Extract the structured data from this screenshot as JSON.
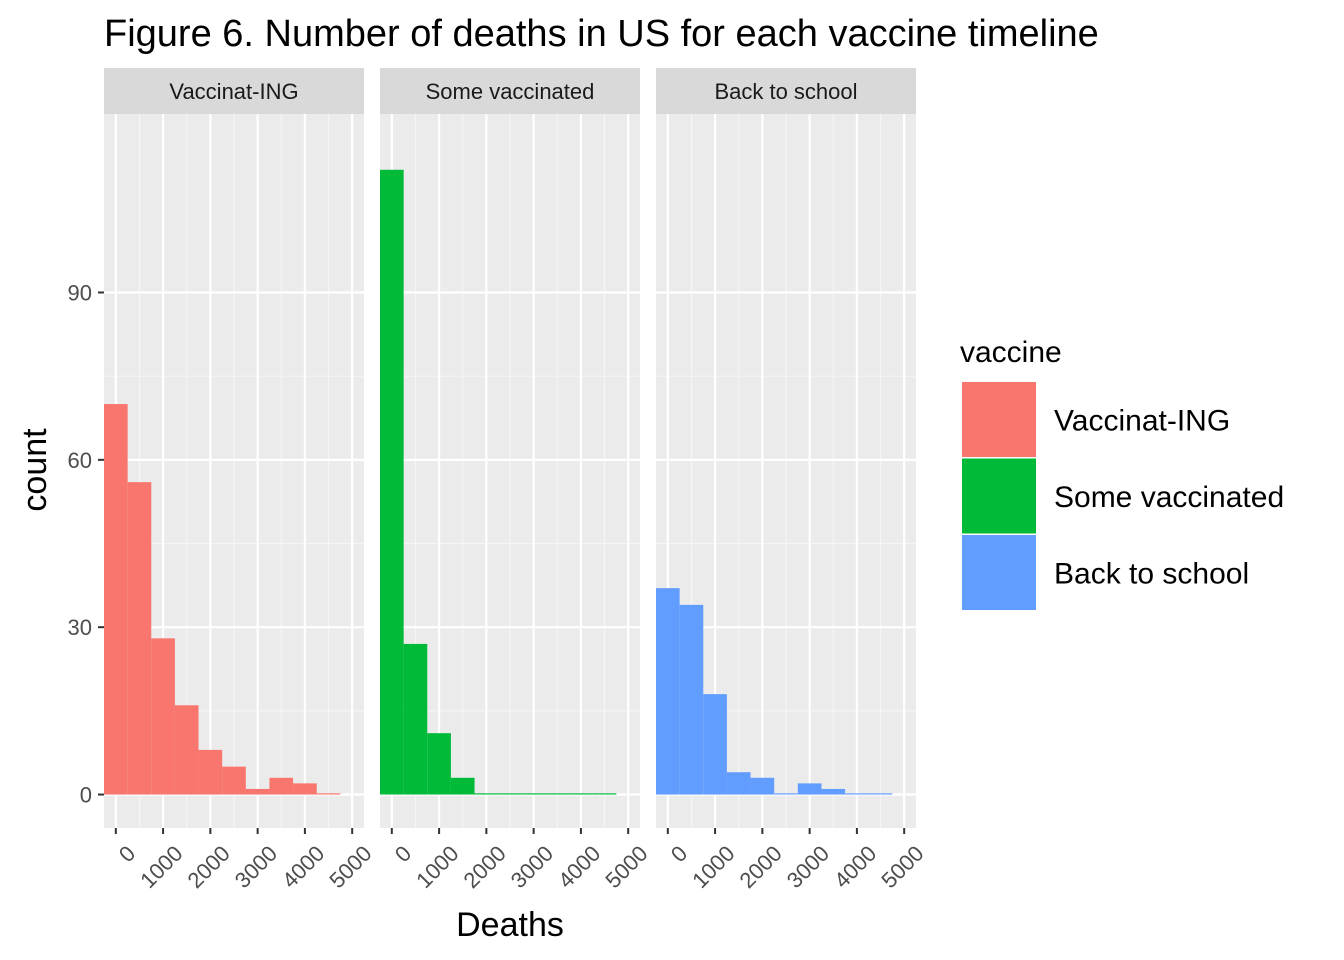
{
  "chart_data": {
    "type": "bar",
    "subtype": "faceted histogram",
    "title": "Figure 6. Number of deaths in US for each vaccine timeline",
    "xlabel": "Deaths",
    "ylabel": "count",
    "xlim": [
      -250,
      5250
    ],
    "ylim": [
      -6,
      122
    ],
    "x_ticks": [
      "0",
      "1000",
      "2000",
      "3000",
      "4000",
      "5000"
    ],
    "x_tick_values": [
      0,
      1000,
      2000,
      3000,
      4000,
      5000
    ],
    "y_ticks": [
      "0",
      "30",
      "60",
      "90"
    ],
    "y_tick_values": [
      0,
      30,
      60,
      90
    ],
    "bin_width": 500,
    "bin_starts": [
      -250,
      250,
      750,
      1250,
      1750,
      2250,
      2750,
      3250,
      3750,
      4250
    ],
    "grid": true,
    "legend": {
      "title": "vaccine",
      "position": "right",
      "entries": [
        "Vaccinat-ING",
        "Some vaccinated",
        "Back to school"
      ]
    },
    "panels": [
      {
        "name": "Vaccinat-ING",
        "color": "#F8766D",
        "values": [
          70,
          56,
          28,
          16,
          8,
          5,
          1,
          3,
          2,
          0
        ]
      },
      {
        "name": "Some vaccinated",
        "color": "#00BA38",
        "values": [
          112,
          27,
          11,
          3,
          0,
          0,
          0,
          0,
          0,
          0
        ]
      },
      {
        "name": "Back to school",
        "color": "#619CFF",
        "values": [
          37,
          34,
          18,
          4,
          3,
          0,
          2,
          1,
          0,
          0
        ]
      }
    ]
  }
}
